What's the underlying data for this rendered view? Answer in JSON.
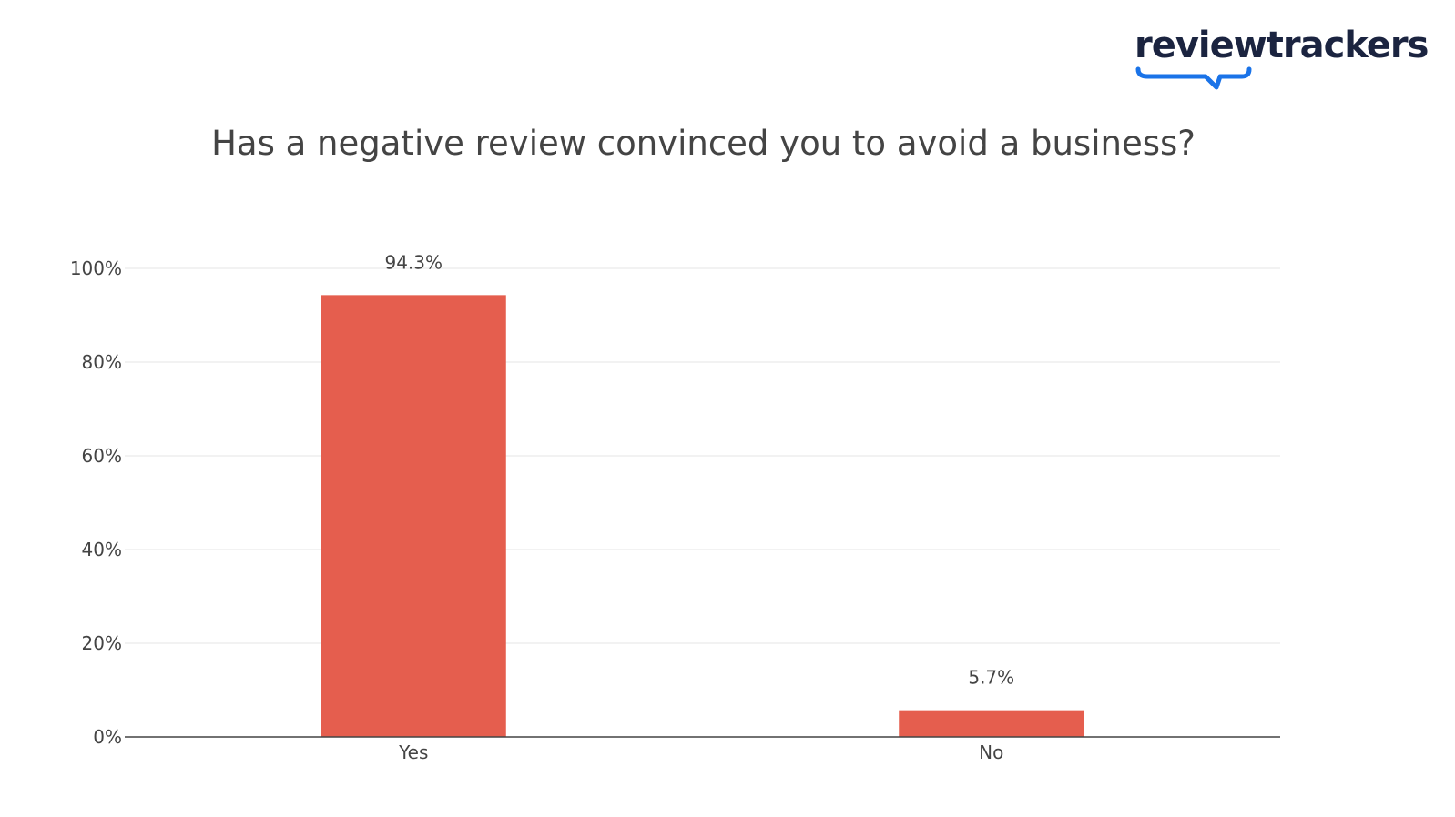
{
  "logo": {
    "text": "reviewtrackers",
    "text_color": "#1b2440",
    "accent_color": "#1a73e8"
  },
  "chart_data": {
    "type": "bar",
    "title": "Has a negative review convinced you to avoid a business?",
    "categories": [
      "Yes",
      "No"
    ],
    "values": [
      94.3,
      5.7
    ],
    "data_labels": [
      "94.3%",
      "5.7%"
    ],
    "ylim": [
      0,
      100
    ],
    "yticks": [
      0,
      20,
      40,
      60,
      80,
      100
    ],
    "ytick_labels": [
      "0%",
      "20%",
      "40%",
      "60%",
      "80%",
      "100%"
    ],
    "xlabel": "",
    "ylabel": "",
    "grid": true,
    "legend": "none",
    "bar_color": "#e55e4e"
  }
}
